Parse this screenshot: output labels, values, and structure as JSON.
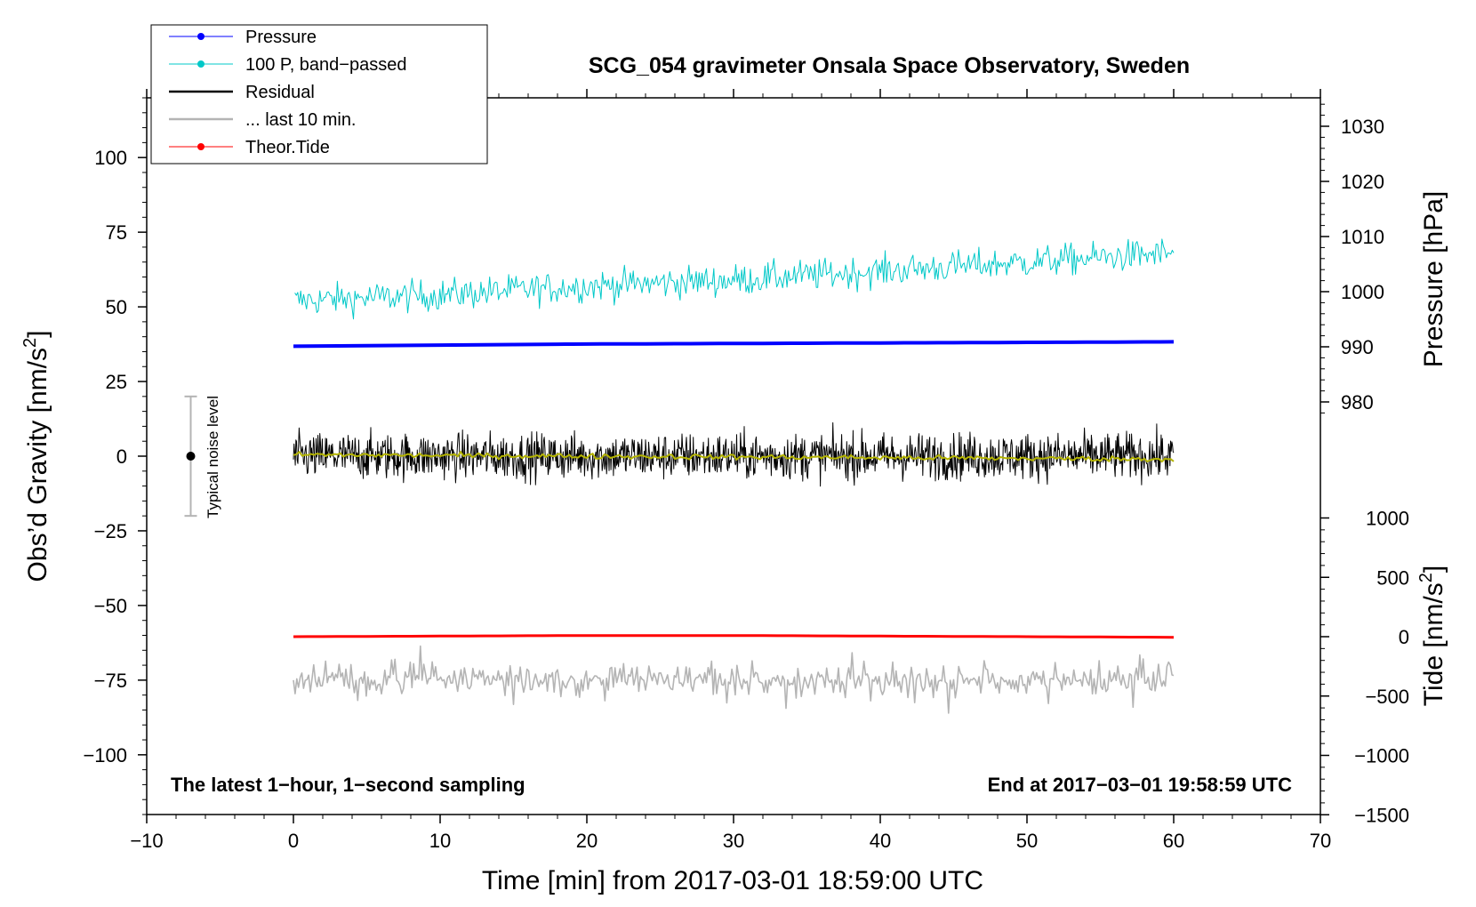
{
  "chart_data": {
    "type": "line",
    "title": "SCG_054 gravimeter Onsala Space Observatory, Sweden",
    "xlabel": "Time [min] from 2017-03-01 18:59:00 UTC",
    "ylabel_left_main": "Obs’d Gravity [nm/s",
    "ylabel_left_sup": "2",
    "ylabel_left_end": "]",
    "ylabel_right_pressure": "Pressure [hPa]",
    "ylabel_right_tide_main": "Tide [nm/s",
    "ylabel_right_tide_sup": "2",
    "ylabel_right_tide_end": "]",
    "xlim": [
      -10,
      70
    ],
    "ylim_left": [
      -120,
      120
    ],
    "x_ticks": [
      "−10",
      "0",
      "10",
      "20",
      "30",
      "40",
      "50",
      "60",
      "70"
    ],
    "x_tick_values": [
      -10,
      0,
      10,
      20,
      30,
      40,
      50,
      60,
      70
    ],
    "y_ticks_left": [
      "100",
      "75",
      "50",
      "25",
      "0",
      "−25",
      "−50",
      "−75",
      "−100"
    ],
    "y_tick_values_left": [
      100,
      75,
      50,
      25,
      0,
      -25,
      -50,
      -75,
      -100
    ],
    "pressure_ticks": [
      "1030",
      "1020",
      "1010",
      "1000",
      "990",
      "980"
    ],
    "pressure_tick_values": [
      1030,
      1020,
      1010,
      1000,
      990,
      980
    ],
    "tide_ticks": [
      "1000",
      "500",
      "0",
      "−500",
      "−1000",
      "−1500"
    ],
    "tide_tick_values": [
      1000,
      500,
      0,
      -500,
      -1000,
      -1500
    ],
    "note_left": "The latest 1−hour, 1−second sampling",
    "note_right": "End at 2017−03−01 19:58:59 UTC",
    "noise_label": "Typical noise level",
    "noise_bar": {
      "x": -7,
      "center": 0,
      "half_range": 20
    },
    "legend": [
      {
        "label": "Pressure",
        "color": "#0000ff",
        "marker": true
      },
      {
        "label": "100 P, band−passed",
        "color": "#00c8c8",
        "marker": true
      },
      {
        "label": "Residual",
        "color": "#000000",
        "marker": false
      },
      {
        "label": "... last 10 min.",
        "color": "#b4b4b4",
        "marker": false
      },
      {
        "label": "Theor.Tide",
        "color": "#ff0000",
        "marker": true
      }
    ],
    "series": [
      {
        "name": "Pressure",
        "color": "#0000ff",
        "axis": "pressure_hPa",
        "x": [
          0,
          10,
          20,
          30,
          40,
          50,
          60
        ],
        "values": [
          990.1,
          990.3,
          990.5,
          990.6,
          990.7,
          990.8,
          990.9
        ]
      },
      {
        "name": "100 P, band−passed",
        "color": "#00c8c8",
        "axis": "gravity",
        "x": [
          0,
          10,
          20,
          30,
          40,
          50,
          60
        ],
        "values": [
          52,
          54,
          57,
          59,
          62,
          65,
          68
        ],
        "noise_amplitude": 5
      },
      {
        "name": "Residual",
        "color": "#000000",
        "axis": "gravity",
        "x": [
          0,
          60
        ],
        "values": [
          0,
          0
        ],
        "noise_amplitude": 8
      },
      {
        "name": "Residual (smoothed)",
        "color": "#b4b400",
        "axis": "gravity",
        "x": [
          0,
          60
        ],
        "values": [
          0.5,
          -1
        ]
      },
      {
        "name": "... last 10 min.",
        "color": "#b4b4b4",
        "axis": "gravity",
        "x": [
          0,
          60
        ],
        "values": [
          -75,
          -75
        ],
        "noise_amplitude": 10
      },
      {
        "name": "Theor.Tide",
        "color": "#ff0000",
        "axis": "tide_nm_s2",
        "x": [
          0,
          10,
          20,
          30,
          40,
          50,
          60
        ],
        "values": [
          0,
          5,
          10,
          10,
          5,
          0,
          -5
        ]
      }
    ]
  }
}
